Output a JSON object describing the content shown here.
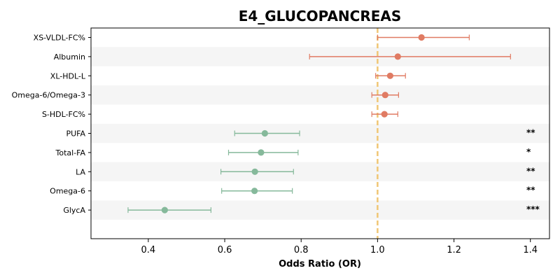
{
  "chart_data": {
    "type": "scatter",
    "title": "E4_GLUCOPANCREAS",
    "xlabel": "Odds Ratio (OR)",
    "ylabel": "",
    "xlim": [
      0.25,
      1.45
    ],
    "xticks": [
      "0.4",
      "0.6",
      "0.8",
      "1.0",
      "1.2",
      "1.4"
    ],
    "reference_line": 1.0,
    "colors": {
      "increased": "#e07b63",
      "decreased": "#86b99b",
      "reference": "#f0c674",
      "band": "#f5f5f5"
    },
    "rows": [
      {
        "label": "XS-VLDL-FC%",
        "or": 1.115,
        "lo": 1.0,
        "hi": 1.24,
        "sig": "",
        "group": "increased"
      },
      {
        "label": "Albumin",
        "or": 1.053,
        "lo": 0.822,
        "hi": 1.348,
        "sig": "",
        "group": "increased"
      },
      {
        "label": "XL-HDL-L",
        "or": 1.033,
        "lo": 0.995,
        "hi": 1.073,
        "sig": "",
        "group": "increased"
      },
      {
        "label": "Omega-6/Omega-3",
        "or": 1.02,
        "lo": 0.985,
        "hi": 1.055,
        "sig": "",
        "group": "increased"
      },
      {
        "label": "S-HDL-FC%",
        "or": 1.018,
        "lo": 0.985,
        "hi": 1.053,
        "sig": "",
        "group": "increased"
      },
      {
        "label": "PUFA",
        "or": 0.705,
        "lo": 0.626,
        "hi": 0.796,
        "sig": "**",
        "group": "decreased"
      },
      {
        "label": "Total-FA",
        "or": 0.695,
        "lo": 0.61,
        "hi": 0.792,
        "sig": "*",
        "group": "decreased"
      },
      {
        "label": "LA",
        "or": 0.679,
        "lo": 0.59,
        "hi": 0.78,
        "sig": "**",
        "group": "decreased"
      },
      {
        "label": "Omega-6",
        "or": 0.678,
        "lo": 0.592,
        "hi": 0.777,
        "sig": "**",
        "group": "decreased"
      },
      {
        "label": "GlycA",
        "or": 0.443,
        "lo": 0.347,
        "hi": 0.564,
        "sig": "***",
        "group": "decreased"
      }
    ]
  }
}
